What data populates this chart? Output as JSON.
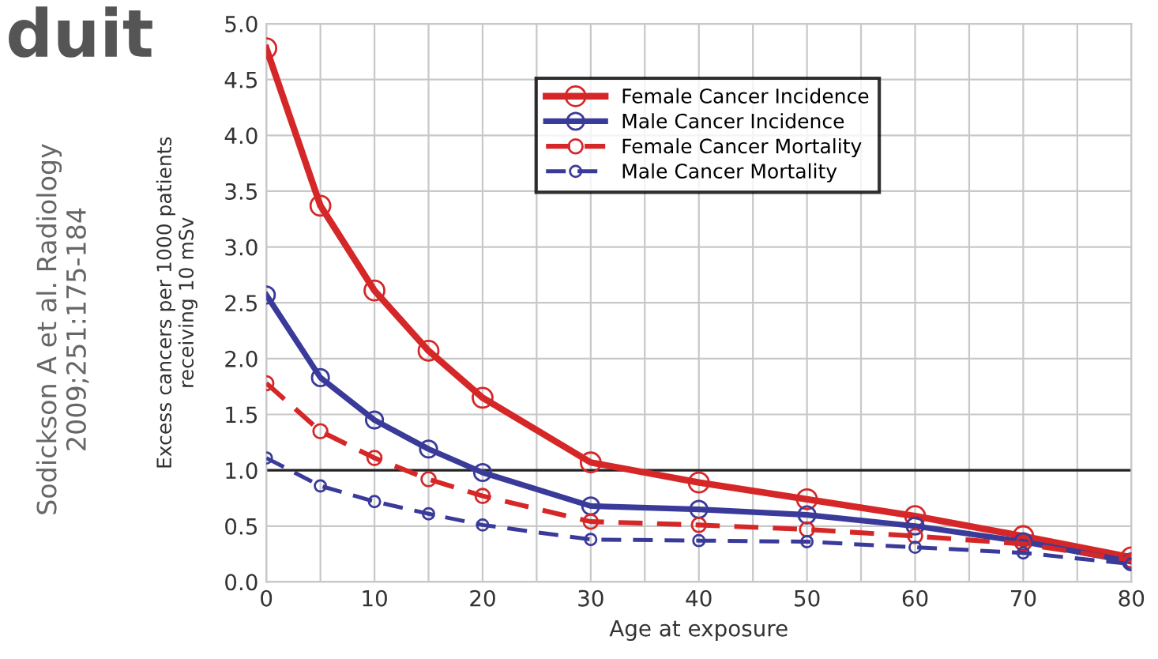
{
  "chart_data": {
    "type": "line",
    "xlabel": "Age at exposure",
    "ylabel": "Excess cancers per 1000 patients\nreceiving 10 mSv",
    "annotations": [
      "duit",
      "Sodickson A et al. Radiology\n2009;251:175-184"
    ],
    "x": [
      0,
      5,
      10,
      15,
      20,
      30,
      40,
      50,
      60,
      70,
      80
    ],
    "series": [
      {
        "name": "Female Cancer Incidence",
        "color": "#d62728",
        "line_style": "solid",
        "values": [
          4.78,
          3.37,
          2.61,
          2.07,
          1.65,
          1.07,
          0.89,
          0.74,
          0.59,
          0.41,
          0.22
        ]
      },
      {
        "name": "Male Cancer Incidence",
        "color": "#3a3a9a",
        "line_style": "solid",
        "values": [
          2.57,
          1.83,
          1.45,
          1.19,
          0.98,
          0.68,
          0.65,
          0.6,
          0.5,
          0.36,
          0.18
        ]
      },
      {
        "name": "Female Cancer Mortality",
        "color": "#d62728",
        "line_style": "dashed",
        "values": [
          1.78,
          1.35,
          1.11,
          0.92,
          0.77,
          0.54,
          0.51,
          0.47,
          0.41,
          0.34,
          0.19
        ]
      },
      {
        "name": "Male Cancer Mortality",
        "color": "#3a3a9a",
        "line_style": "dashed",
        "values": [
          1.11,
          0.86,
          0.72,
          0.61,
          0.51,
          0.38,
          0.37,
          0.36,
          0.31,
          0.26,
          0.16
        ]
      }
    ],
    "marker": "circle",
    "xlim": [
      0,
      80
    ],
    "ylim": [
      0,
      5
    ],
    "xticks": [
      0,
      {
        "value": 5,
        "label": null
      },
      10,
      {
        "value": 15,
        "label": null
      },
      20,
      {
        "value": 25,
        "label": null
      },
      30,
      {
        "value": 35,
        "label": null
      },
      40,
      {
        "value": 45,
        "label": null
      },
      50,
      {
        "value": 55,
        "label": null
      },
      60,
      {
        "value": 65,
        "label": null
      },
      70,
      {
        "value": 75,
        "label": null
      },
      80
    ],
    "yticks": [
      {
        "value": 0,
        "label": "0.0"
      },
      {
        "value": 0.5,
        "label": "0.5"
      },
      {
        "value": 1,
        "label": "1.0"
      },
      {
        "value": 1.5,
        "label": "1.5"
      },
      {
        "value": 2,
        "label": "2.0"
      },
      {
        "value": 2.5,
        "label": "2.5"
      },
      {
        "value": 3,
        "label": "3.0"
      },
      {
        "value": 3.5,
        "label": "3.5"
      },
      {
        "value": 4,
        "label": "4.0"
      },
      {
        "value": 4.5,
        "label": "4.5"
      },
      {
        "value": 5,
        "label": "5.0"
      }
    ],
    "ref_lines": [
      {
        "axis": "y",
        "value": 1,
        "color": "#222222"
      }
    ],
    "grid": true,
    "legend": "top right"
  }
}
